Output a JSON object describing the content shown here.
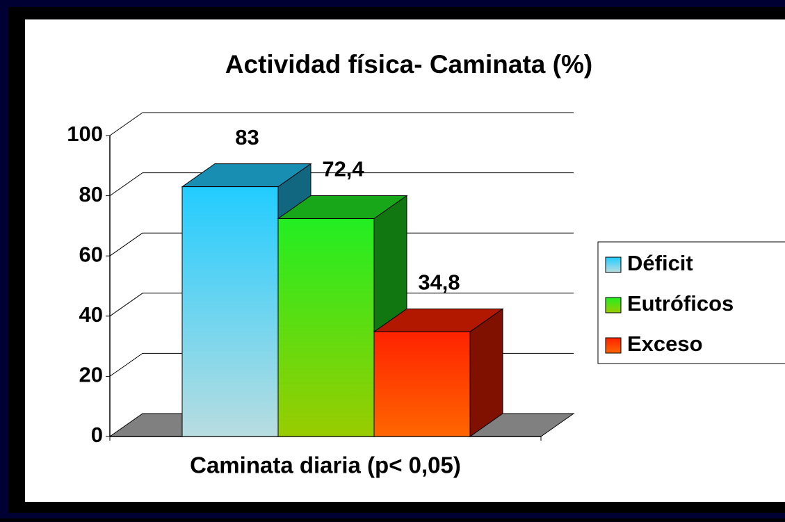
{
  "chart_data": {
    "type": "bar3d",
    "title": "Actividad física- Caminata (%)",
    "categories": [
      "Caminata diaria (p< 0,05)"
    ],
    "series": [
      {
        "name": "Déficit",
        "color": "#22ccff",
        "values": [
          83
        ],
        "value_labels": [
          "83"
        ]
      },
      {
        "name": "Eutróficos",
        "color": "#22ee22",
        "values": [
          72.4
        ],
        "value_labels": [
          "72,4"
        ]
      },
      {
        "name": "Exceso",
        "color": "#ff2200",
        "values": [
          34.8
        ],
        "value_labels": [
          "34,8"
        ]
      }
    ],
    "ylim": [
      0,
      100
    ],
    "yticks": [
      0,
      20,
      40,
      60,
      80,
      100
    ],
    "grid": true,
    "legend": "right"
  }
}
